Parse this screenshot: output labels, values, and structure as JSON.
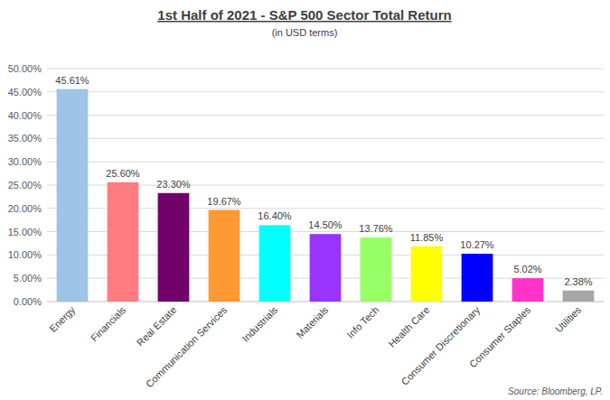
{
  "chart_data": {
    "type": "bar",
    "title": "1st Half of 2021 - S&P 500 Sector Total Return",
    "subtitle": "(in USD terms)",
    "categories": [
      "Energy",
      "Financials",
      "Real Estate",
      "Communication Services",
      "Industrials",
      "Materials",
      "Info Tech",
      "Health Care",
      "Consumer Discretionary",
      "Consumer Staples",
      "Utilities"
    ],
    "values": [
      45.61,
      25.6,
      23.3,
      19.67,
      16.4,
      14.5,
      13.76,
      11.85,
      10.27,
      5.02,
      2.38
    ],
    "value_labels": [
      "45.61%",
      "25.60%",
      "23.30%",
      "19.67%",
      "16.40%",
      "14.50%",
      "13.76%",
      "11.85%",
      "10.27%",
      "5.02%",
      "2.38%"
    ],
    "colors": [
      "#9dc3e6",
      "#ff7c80",
      "#72006b",
      "#ff9933",
      "#00ffff",
      "#9933ff",
      "#99ff66",
      "#ffff00",
      "#0000ff",
      "#ff33cc",
      "#a6a6a6"
    ],
    "ylim": [
      0,
      50
    ],
    "yticks": [
      {
        "value": 0,
        "label": "0.00%"
      },
      {
        "value": 5,
        "label": "5.00%"
      },
      {
        "value": 10,
        "label": "10.00%"
      },
      {
        "value": 15,
        "label": "15.00%"
      },
      {
        "value": 20,
        "label": "20.00%"
      },
      {
        "value": 25,
        "label": "25.00%"
      },
      {
        "value": 30,
        "label": "30.00%"
      },
      {
        "value": 35,
        "label": "35.00%"
      },
      {
        "value": 40,
        "label": "40.00%"
      },
      {
        "value": 45,
        "label": "45.00%"
      },
      {
        "value": 50,
        "label": "50.00%"
      }
    ],
    "grid": true,
    "data_labels": true,
    "annotations": [
      "Source: Bloomberg, LP."
    ]
  }
}
